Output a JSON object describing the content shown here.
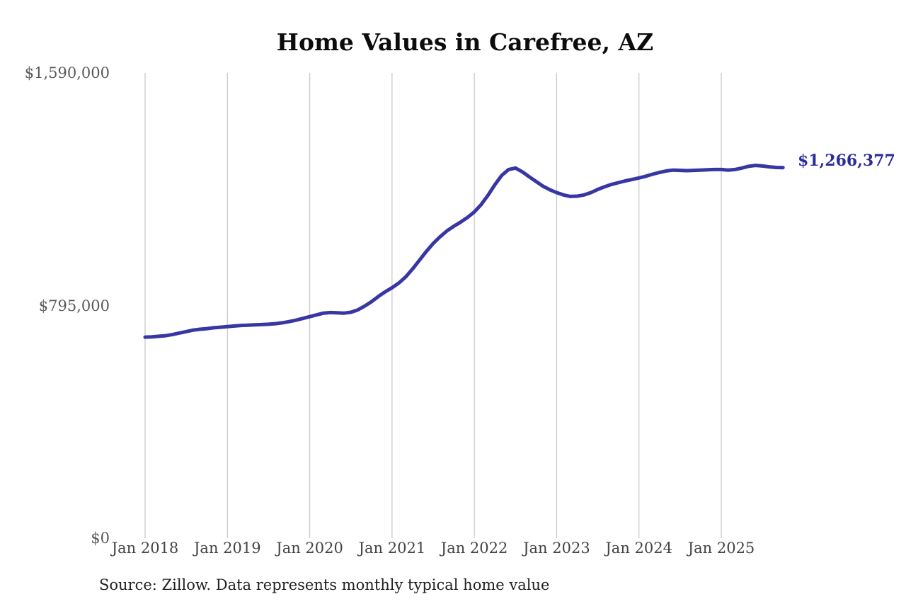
{
  "title": "Home Values in Carefree, AZ",
  "source_note": "Source: Zillow. Data represents monthly typical home value",
  "end_label": "$1,266,377",
  "colors": {
    "line": "#3737a3",
    "end_label": "#2b2b9c",
    "gridline": "#c9c9c9",
    "y_axis_label": "#595959",
    "x_axis_label": "#434343",
    "title": "#0c0c0c",
    "source": "#222222",
    "background": "#ffffff"
  },
  "chart_data": {
    "type": "line",
    "title": "Home Values in Carefree, AZ",
    "x_frequency": "monthly",
    "x_start": "Jan 2018",
    "x_end": "Oct 2025",
    "x_tick_labels": [
      "Jan 2018",
      "Jan 2019",
      "Jan 2020",
      "Jan 2021",
      "Jan 2022",
      "Jan 2023",
      "Jan 2024",
      "Jan 2025"
    ],
    "y_tick_labels": [
      "$0",
      "$795,000",
      "$1,590,000"
    ],
    "y_tick_values": [
      0,
      795000,
      1590000
    ],
    "ylim": [
      0,
      1590000
    ],
    "grid": "vertical-only",
    "legend": "none",
    "final_value": 1266377,
    "final_value_label": "$1,266,377",
    "series": [
      {
        "name": "Typical home value",
        "values": [
          687000,
          688000,
          690000,
          692000,
          696000,
          701000,
          706000,
          711000,
          714000,
          716000,
          719000,
          721000,
          723000,
          725000,
          727000,
          728000,
          729000,
          730000,
          731000,
          733000,
          736000,
          740000,
          745000,
          751000,
          757000,
          763000,
          769000,
          771000,
          770000,
          769000,
          772000,
          780000,
          793000,
          808000,
          826000,
          842000,
          856000,
          872000,
          893000,
          920000,
          950000,
          980000,
          1007000,
          1030000,
          1050000,
          1066000,
          1080000,
          1096000,
          1115000,
          1140000,
          1172000,
          1208000,
          1240000,
          1260000,
          1265000,
          1252000,
          1235000,
          1219000,
          1203000,
          1191000,
          1181000,
          1173000,
          1168000,
          1169000,
          1173000,
          1181000,
          1192000,
          1201000,
          1209000,
          1215000,
          1221000,
          1226000,
          1231000,
          1237000,
          1244000,
          1250000,
          1255000,
          1258000,
          1257000,
          1256000,
          1257000,
          1258000,
          1259000,
          1260000,
          1260000,
          1258000,
          1260000,
          1265000,
          1271000,
          1274000,
          1272000,
          1269000,
          1267000,
          1266377
        ]
      }
    ]
  }
}
